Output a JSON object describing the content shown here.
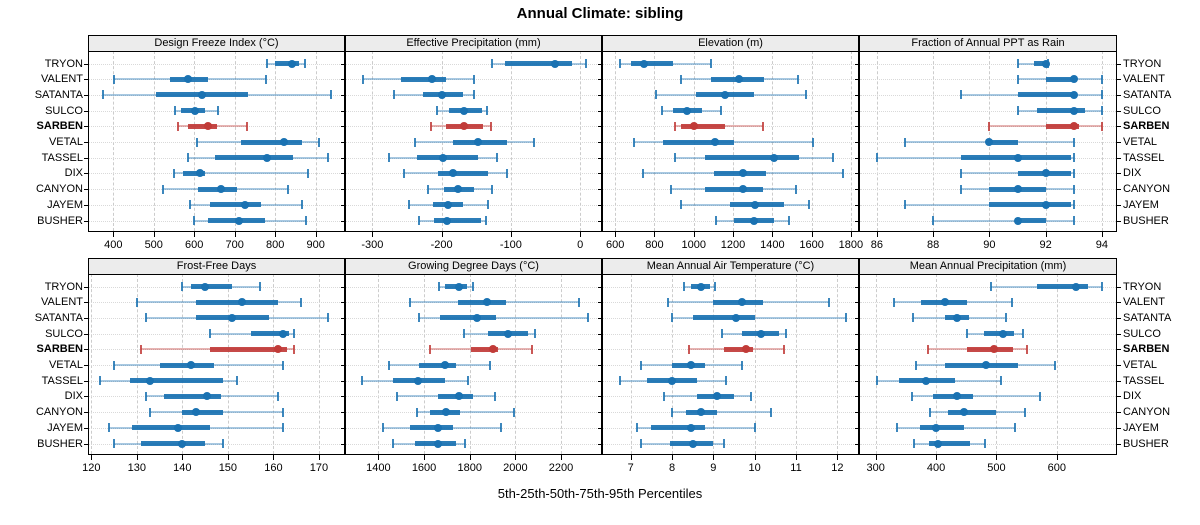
{
  "title": "Annual Climate: sibling",
  "caption": "5th-25th-50th-75th-95th Percentiles",
  "percentile_labels": [
    "5th",
    "25th",
    "50th",
    "75th",
    "95th"
  ],
  "sites": [
    "TRYON",
    "VALENT",
    "SATANTA",
    "SULCO",
    "SARBEN",
    "VETAL",
    "TASSEL",
    "DIX",
    "CANYON",
    "JAYEM",
    "BUSHER"
  ],
  "highlight_site": "SARBEN",
  "colors": {
    "series": "#1a72b2",
    "highlight": "#c13b38",
    "grid": "#cccccc",
    "row_grid": "#d9d9d9",
    "strip_bg": "#ececec",
    "border": "#000000"
  },
  "chart_data": [
    {
      "type": "dotplot-interval",
      "title": "Design Freeze Index (°C)",
      "row": 0,
      "col": 0,
      "xlim": [
        340,
        970
      ],
      "ticks": [
        400,
        500,
        600,
        700,
        800,
        900
      ],
      "values": {
        "TRYON": [
          780,
          800,
          842,
          860,
          874
        ],
        "VALENT": [
          402,
          540,
          585,
          634,
          778
        ],
        "SATANTA": [
          374,
          505,
          618,
          734,
          938
        ],
        "SULCO": [
          553,
          568,
          603,
          626,
          659
        ],
        "SARBEN": [
          559,
          585,
          634,
          656,
          731
        ],
        "VETAL": [
          606,
          716,
          822,
          866,
          908
        ],
        "TASSEL": [
          584,
          651,
          780,
          845,
          931
        ],
        "DIX": [
          550,
          572,
          615,
          626,
          880
        ],
        "CANYON": [
          524,
          609,
          666,
          705,
          831
        ],
        "JAYEM": [
          590,
          639,
          726,
          764,
          866
        ],
        "BUSHER": [
          599,
          634,
          711,
          776,
          875
        ]
      }
    },
    {
      "type": "dotplot-interval",
      "title": "Effective Precipitation (mm)",
      "row": 0,
      "col": 1,
      "xlim": [
        -338,
        30
      ],
      "ticks": [
        -300,
        -200,
        -100,
        0
      ],
      "values": {
        "TRYON": [
          -128,
          -108,
          -36,
          -12,
          8
        ],
        "VALENT": [
          -314,
          -258,
          -214,
          -194,
          -153
        ],
        "SATANTA": [
          -269,
          -227,
          -199,
          -169,
          -153
        ],
        "SULCO": [
          -206,
          -189,
          -167,
          -141,
          -134
        ],
        "SARBEN": [
          -215,
          -193,
          -168,
          -140,
          -129
        ],
        "VETAL": [
          -238,
          -183,
          -147,
          -105,
          -67
        ],
        "TASSEL": [
          -276,
          -236,
          -198,
          -148,
          -120
        ],
        "DIX": [
          -254,
          -205,
          -183,
          -133,
          -106
        ],
        "CANYON": [
          -219,
          -197,
          -176,
          -153,
          -128
        ],
        "JAYEM": [
          -247,
          -212,
          -191,
          -169,
          -133
        ],
        "BUSHER": [
          -233,
          -211,
          -192,
          -143,
          -136
        ]
      }
    },
    {
      "type": "dotplot-interval",
      "title": "Elevation (m)",
      "row": 0,
      "col": 2,
      "xlim": [
        538,
        1836
      ],
      "ticks": [
        600,
        800,
        1000,
        1200,
        1400,
        1600,
        1800
      ],
      "values": {
        "TRYON": [
          625,
          681,
          746,
          896,
          1089
        ],
        "VALENT": [
          934,
          1089,
          1231,
          1359,
          1531
        ],
        "SATANTA": [
          810,
          1013,
          1161,
          1308,
          1569
        ],
        "SULCO": [
          836,
          895,
          964,
          1040,
          1139
        ],
        "SARBEN": [
          903,
          937,
          1001,
          1158,
          1354
        ],
        "VETAL": [
          694,
          845,
          1110,
          1206,
          1607
        ],
        "TASSEL": [
          906,
          1056,
          1409,
          1534,
          1711
        ],
        "DIX": [
          744,
          1102,
          1253,
          1366,
          1762
        ],
        "CANYON": [
          884,
          1055,
          1249,
          1354,
          1518
        ],
        "JAYEM": [
          937,
          1186,
          1312,
          1459,
          1589
        ],
        "BUSHER": [
          1114,
          1206,
          1307,
          1409,
          1484
        ]
      }
    },
    {
      "type": "dotplot-interval",
      "title": "Fraction of Annual PPT as Rain",
      "row": 0,
      "col": 3,
      "xlim": [
        85.4,
        94.5
      ],
      "ticks": [
        86,
        88,
        90,
        92,
        94
      ],
      "values": {
        "TRYON": [
          91,
          91.6,
          92,
          92,
          92.1
        ],
        "VALENT": [
          91,
          92,
          93,
          93,
          94
        ],
        "SATANTA": [
          89,
          91,
          93,
          93,
          94
        ],
        "SULCO": [
          91,
          91.7,
          93,
          93.4,
          94
        ],
        "SARBEN": [
          90,
          92,
          93,
          93.2,
          94
        ],
        "VETAL": [
          87,
          89.9,
          90,
          91,
          93
        ],
        "TASSEL": [
          86,
          89,
          91,
          92.9,
          93
        ],
        "DIX": [
          89,
          91,
          92,
          92.9,
          93
        ],
        "CANYON": [
          89,
          90,
          91,
          92,
          93
        ],
        "JAYEM": [
          87,
          90,
          92,
          92.9,
          93
        ],
        "BUSHER": [
          88,
          90.9,
          91,
          92,
          93
        ]
      }
    },
    {
      "type": "dotplot-interval",
      "title": "Frost-Free Days",
      "row": 1,
      "col": 0,
      "xlim": [
        119.5,
        175.5
      ],
      "ticks": [
        120,
        130,
        140,
        150,
        160,
        170
      ],
      "values": {
        "TRYON": [
          140,
          142,
          145,
          151,
          157
        ],
        "VALENT": [
          130,
          143,
          153,
          161,
          166
        ],
        "SATANTA": [
          132,
          143,
          151,
          159,
          172
        ],
        "SULCO": [
          146,
          155,
          162,
          163.5,
          164.5
        ],
        "SARBEN": [
          131,
          146,
          161,
          163,
          164.5
        ],
        "VETAL": [
          125,
          135,
          142,
          147,
          162
        ],
        "TASSEL": [
          122,
          128.5,
          133,
          149,
          152
        ],
        "DIX": [
          132,
          136,
          145.5,
          148.5,
          161
        ],
        "CANYON": [
          133,
          140,
          143,
          149,
          162
        ],
        "JAYEM": [
          124,
          129,
          139,
          146,
          162
        ],
        "BUSHER": [
          125,
          131,
          140,
          145,
          149
        ]
      }
    },
    {
      "type": "dotplot-interval",
      "title": "Growing Degree Days (°C)",
      "row": 1,
      "col": 1,
      "xlim": [
        1258,
        2375
      ],
      "ticks": [
        1400,
        1600,
        1800,
        2000,
        2200
      ],
      "values": {
        "TRYON": [
          1665,
          1692,
          1752,
          1790,
          1816
        ],
        "VALENT": [
          1538,
          1749,
          1876,
          1960,
          2277
        ],
        "SATANTA": [
          1579,
          1668,
          1831,
          1916,
          2320
        ],
        "SULCO": [
          1774,
          1880,
          1969,
          2055,
          2085
        ],
        "SARBEN": [
          1628,
          1806,
          1901,
          1925,
          2073
        ],
        "VETAL": [
          1448,
          1579,
          1693,
          1738,
          1887
        ],
        "TASSEL": [
          1330,
          1462,
          1574,
          1690,
          1792
        ],
        "DIX": [
          1480,
          1661,
          1755,
          1814,
          1909
        ],
        "CANYON": [
          1570,
          1628,
          1694,
          1756,
          1996
        ],
        "JAYEM": [
          1421,
          1538,
          1659,
          1727,
          1938
        ],
        "BUSHER": [
          1464,
          1560,
          1659,
          1741,
          1778
        ]
      }
    },
    {
      "type": "dotplot-interval",
      "title": "Mean Annual Air Temperature (°C)",
      "row": 1,
      "col": 2,
      "xlim": [
        6.33,
        12.5
      ],
      "ticks": [
        7,
        8,
        9,
        10,
        11,
        12
      ],
      "values": {
        "TRYON": [
          8.3,
          8.45,
          8.7,
          8.93,
          9.05
        ],
        "VALENT": [
          7.9,
          9.0,
          9.7,
          10.2,
          11.8
        ],
        "SATANTA": [
          8.0,
          8.5,
          9.55,
          10.0,
          12.2
        ],
        "SULCO": [
          9.2,
          9.7,
          10.15,
          10.6,
          10.75
        ],
        "SARBEN": [
          8.4,
          9.25,
          9.8,
          9.95,
          10.7
        ],
        "VETAL": [
          7.25,
          8.0,
          8.45,
          8.8,
          9.7
        ],
        "TASSEL": [
          6.75,
          7.4,
          8.0,
          8.6,
          9.3
        ],
        "DIX": [
          7.8,
          8.6,
          9.1,
          9.5,
          9.9
        ],
        "CANYON": [
          8.0,
          8.35,
          8.7,
          9.1,
          10.4
        ],
        "JAYEM": [
          7.15,
          7.5,
          8.45,
          8.8,
          10.0
        ],
        "BUSHER": [
          7.25,
          7.95,
          8.5,
          9.0,
          9.25
        ]
      }
    },
    {
      "type": "dotplot-interval",
      "title": "Mean Annual Precipitation (mm)",
      "row": 1,
      "col": 3,
      "xlim": [
        274,
        698
      ],
      "ticks": [
        300,
        400,
        500,
        600
      ],
      "values": {
        "TRYON": [
          491,
          567,
          631,
          651,
          674
        ],
        "VALENT": [
          331,
          375,
          414,
          452,
          525
        ],
        "SATANTA": [
          361,
          414,
          435,
          455,
          515
        ],
        "SULCO": [
          452,
          479,
          511,
          529,
          544
        ],
        "SARBEN": [
          386,
          452,
          496,
          527,
          551
        ],
        "VETAL": [
          367,
          415,
          483,
          535,
          597
        ],
        "TASSEL": [
          302,
          338,
          384,
          432,
          507
        ],
        "DIX": [
          360,
          395,
          434,
          462,
          572
        ],
        "CANYON": [
          390,
          420,
          447,
          500,
          547
        ],
        "JAYEM": [
          336,
          373,
          400,
          446,
          531
        ],
        "BUSHER": [
          364,
          388,
          403,
          456,
          481
        ]
      }
    }
  ]
}
